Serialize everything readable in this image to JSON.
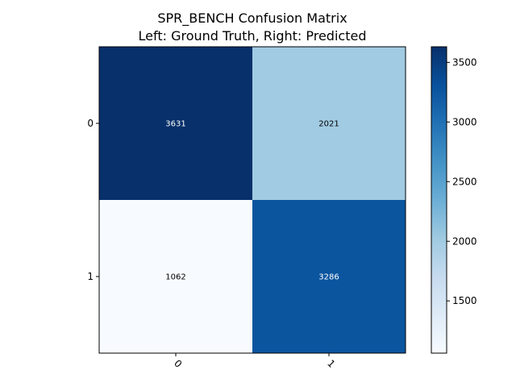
{
  "chart_data": {
    "type": "heatmap",
    "title": "SPR_BENCH Confusion Matrix",
    "subtitle": "Left: Ground Truth, Right: Predicted",
    "row_labels": [
      "0",
      "1"
    ],
    "col_labels": [
      "0",
      "1"
    ],
    "values": [
      [
        3631,
        2021
      ],
      [
        1062,
        3286
      ]
    ],
    "colormap": "Blues",
    "colorbar": {
      "range": [
        1062,
        3631
      ],
      "ticks": [
        1500,
        2000,
        2500,
        3000,
        3500
      ],
      "tick_labels": [
        "1500",
        "2000",
        "2500",
        "3000",
        "3500"
      ]
    },
    "colors": {
      "cells": [
        [
          "#08306b",
          "#a1cbe2"
        ],
        [
          "#f7fbff",
          "#0b559f"
        ]
      ],
      "dark_text": "#000000",
      "light_text": "#ffffff"
    }
  }
}
